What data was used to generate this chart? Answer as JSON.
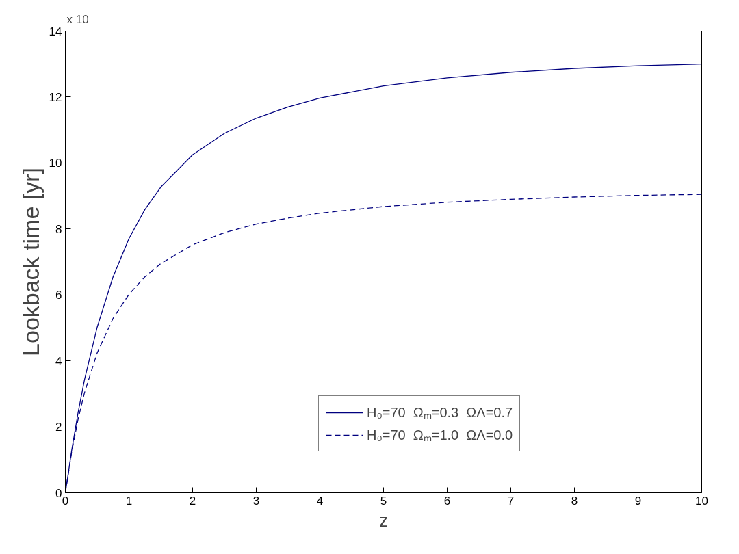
{
  "chart_data": {
    "type": "line",
    "xlabel": "z",
    "ylabel": "Lookback time [yr]",
    "annotations": [
      "x 10"
    ],
    "x": [
      0,
      0.1,
      0.2,
      0.3,
      0.5,
      0.75,
      1,
      1.25,
      1.5,
      2,
      2.5,
      3,
      3.5,
      4,
      5,
      6,
      7,
      8,
      9,
      10
    ],
    "series": [
      {
        "name": "H₀=70  Ωₘ=0.3  ΩΛ=0.7",
        "color": "#00007f",
        "line_style": "solid",
        "values": [
          0,
          1.29,
          2.43,
          3.42,
          5.02,
          6.55,
          7.71,
          8.59,
          9.27,
          10.25,
          10.9,
          11.36,
          11.7,
          11.97,
          12.34,
          12.58,
          12.75,
          12.87,
          12.95,
          13.0
        ]
      },
      {
        "name": "H₀=70  Ωₘ=1.0  ΩΛ=0.0",
        "color": "#00007f",
        "line_style": "dashed",
        "values": [
          0,
          1.24,
          2.23,
          3.03,
          4.24,
          5.29,
          6.02,
          6.55,
          6.95,
          7.52,
          7.89,
          8.15,
          8.33,
          8.48,
          8.68,
          8.81,
          8.9,
          8.97,
          9.02,
          9.05
        ]
      }
    ],
    "xlim": [
      0,
      10
    ],
    "xticks": [
      0,
      1,
      2,
      3,
      4,
      5,
      6,
      7,
      8,
      9,
      10
    ],
    "ylim": [
      0,
      14
    ],
    "yticks": [
      0,
      2,
      4,
      6,
      8,
      10,
      12,
      14
    ],
    "grid": false,
    "legend": "bottom"
  }
}
